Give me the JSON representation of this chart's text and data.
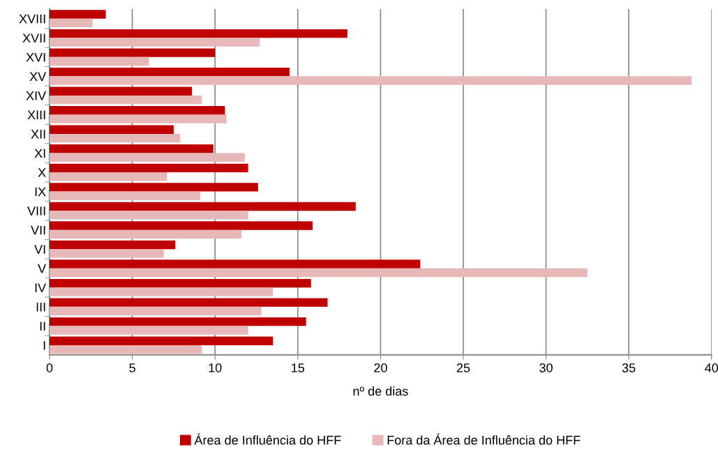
{
  "chart_data": {
    "type": "bar",
    "orientation": "horizontal",
    "xlabel": "nº de dias",
    "categories": [
      "XVIII",
      "XVII",
      "XVI",
      "XV",
      "XIV",
      "XIII",
      "XII",
      "XI",
      "X",
      "IX",
      "VIII",
      "VII",
      "VI",
      "V",
      "IV",
      "III",
      "II",
      "I"
    ],
    "series": [
      {
        "name": "Área de Influência do HFF",
        "color": "#c00000",
        "values": [
          3.4,
          18.0,
          10.0,
          14.5,
          8.6,
          10.6,
          7.5,
          9.9,
          12.0,
          12.6,
          18.5,
          15.9,
          7.6,
          22.4,
          15.8,
          16.8,
          15.5,
          13.5
        ]
      },
      {
        "name": "Fora da Área de Influência do HFF",
        "color": "#e6b9b8",
        "values": [
          2.6,
          12.7,
          6.0,
          38.8,
          9.2,
          10.7,
          7.9,
          11.8,
          7.1,
          9.1,
          12.0,
          11.6,
          6.9,
          32.5,
          13.5,
          12.8,
          12.0,
          9.2
        ]
      }
    ],
    "xlim": [
      0,
      40
    ],
    "xticks": [
      0,
      5,
      10,
      15,
      20,
      25,
      30,
      35,
      40
    ],
    "grid": "x",
    "legend": "bottom"
  }
}
